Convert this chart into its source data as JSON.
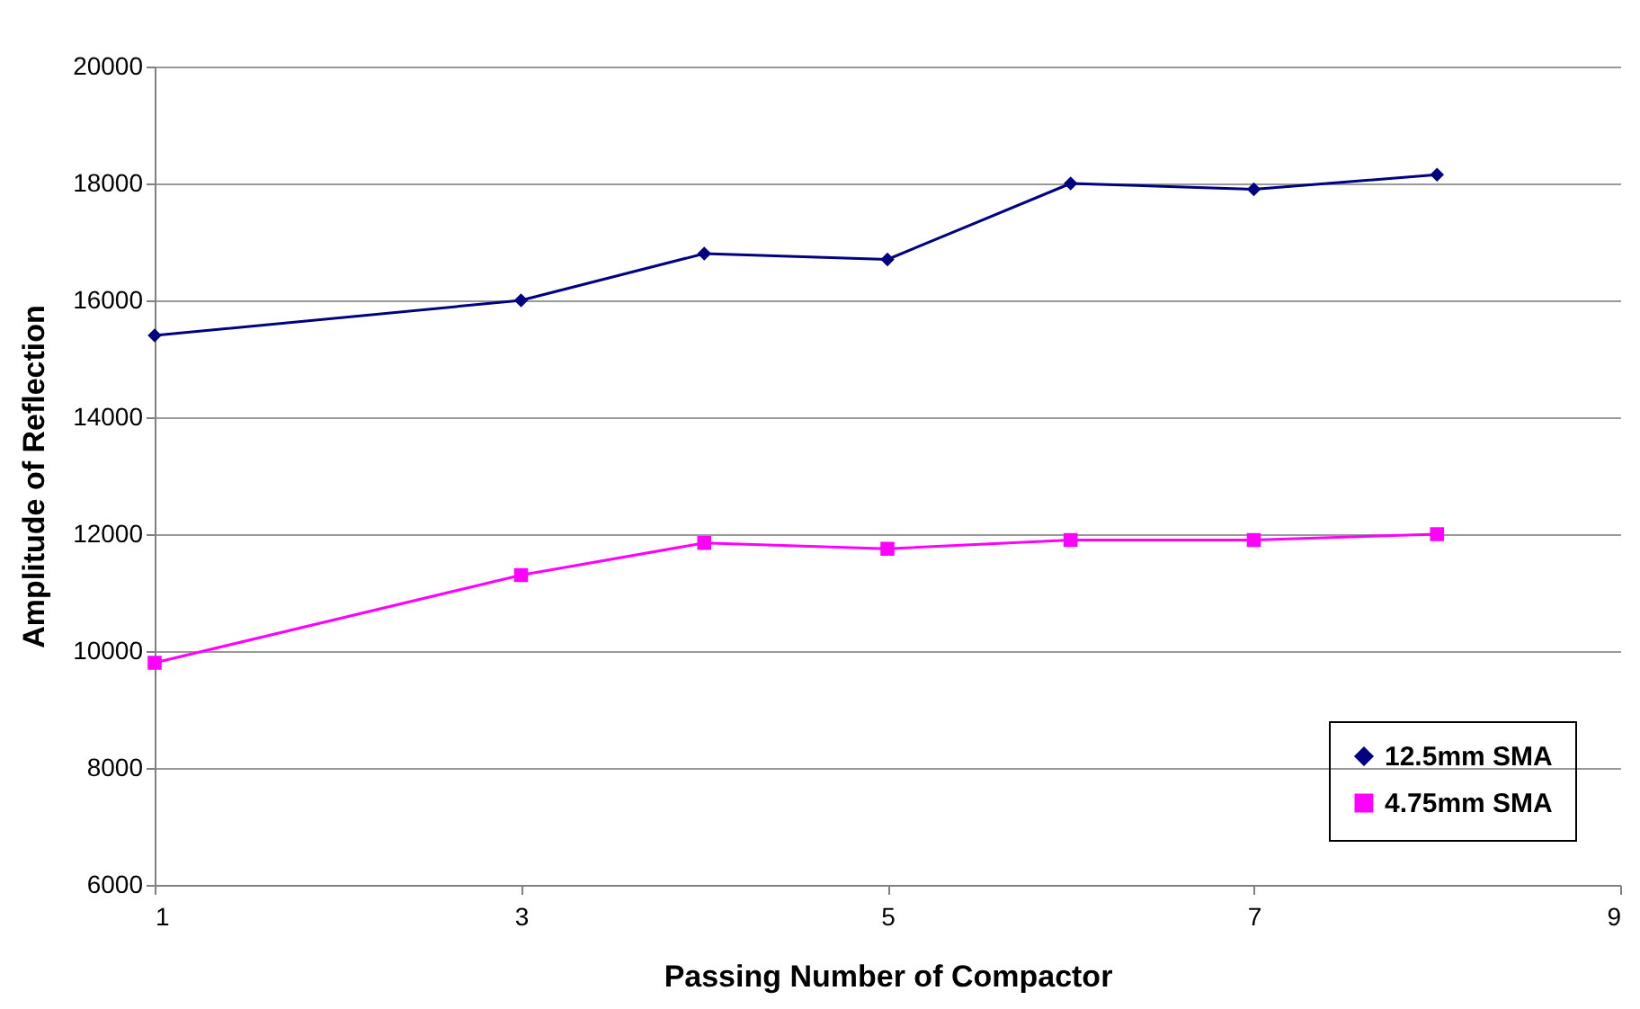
{
  "chart_data": {
    "type": "line",
    "xlabel": "Passing Number of Compactor",
    "ylabel": "Amplitude of Reflection",
    "xlim": [
      1,
      9
    ],
    "xticks": [
      1,
      3,
      5,
      7,
      9
    ],
    "ylim": [
      6000,
      20000
    ],
    "yticks": [
      6000,
      8000,
      10000,
      12000,
      14000,
      16000,
      18000,
      20000
    ],
    "grid": "y",
    "legend": "bottom right",
    "series": [
      {
        "name": "12.5mm SMA",
        "color": "#000080",
        "marker": "diamond",
        "x": [
          1,
          3,
          4,
          5,
          6,
          7,
          8
        ],
        "values": [
          15400,
          16000,
          16800,
          16700,
          18000,
          17900,
          18150
        ]
      },
      {
        "name": "4.75mm SMA",
        "color": "#ff00ff",
        "marker": "square",
        "x": [
          1,
          3,
          4,
          5,
          6,
          7,
          8
        ],
        "values": [
          9800,
          11300,
          11850,
          11750,
          11900,
          11900,
          12000
        ]
      }
    ]
  }
}
